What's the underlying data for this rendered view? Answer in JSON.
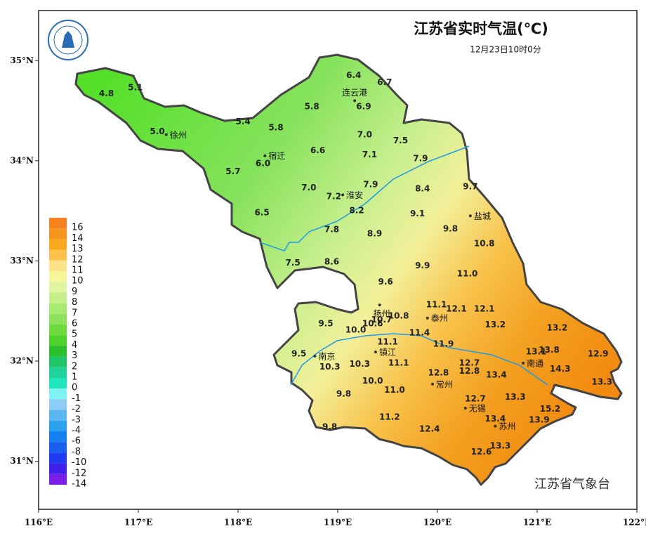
{
  "header": {
    "title": "江苏省实时气温(℃)",
    "subtitle": "12月23日10时0分"
  },
  "footer": "江苏省气象台",
  "map": {
    "xlim": [
      116,
      122
    ],
    "ylim": [
      30.52,
      35.5
    ],
    "xticks": [
      {
        "value": 116,
        "label": "116°E"
      },
      {
        "value": 117,
        "label": "117°E"
      },
      {
        "value": 118,
        "label": "118°E"
      },
      {
        "value": 119,
        "label": "119°E"
      },
      {
        "value": 120,
        "label": "120°E"
      },
      {
        "value": 121,
        "label": "121°E"
      },
      {
        "value": 122,
        "label": "122°E"
      }
    ],
    "yticks": [
      {
        "value": 31,
        "label": "31°N"
      },
      {
        "value": 32,
        "label": "32°N"
      },
      {
        "value": 33,
        "label": "33°N"
      },
      {
        "value": 34,
        "label": "34°N"
      },
      {
        "value": 35,
        "label": "35°N"
      }
    ],
    "stations": [
      {
        "lon": 116.68,
        "lat": 34.67,
        "value": 4.8
      },
      {
        "lon": 116.97,
        "lat": 34.73,
        "value": 5.1
      },
      {
        "lon": 117.19,
        "lat": 34.29,
        "value": 5,
        "label": "5.0"
      },
      {
        "lon": 118.05,
        "lat": 34.39,
        "value": 5.4
      },
      {
        "lon": 118.38,
        "lat": 34.33,
        "value": 5.8
      },
      {
        "lon": 118.74,
        "lat": 34.54,
        "value": 5.8
      },
      {
        "lon": 119.16,
        "lat": 34.85,
        "value": 6.4
      },
      {
        "lon": 119.47,
        "lat": 34.78,
        "value": 6.7
      },
      {
        "lon": 119.26,
        "lat": 34.54,
        "value": 6.9
      },
      {
        "lon": 119.27,
        "lat": 34.26,
        "value": 7,
        "label": "7.0"
      },
      {
        "lon": 118.8,
        "lat": 34.1,
        "value": 6.6
      },
      {
        "lon": 119.32,
        "lat": 34.06,
        "value": 7.1
      },
      {
        "lon": 119.63,
        "lat": 34.2,
        "value": 7.5
      },
      {
        "lon": 119.83,
        "lat": 34.02,
        "value": 7.9
      },
      {
        "lon": 118.25,
        "lat": 33.97,
        "value": 6,
        "label": "6.0"
      },
      {
        "lon": 117.95,
        "lat": 33.89,
        "value": 5.7
      },
      {
        "lon": 118.71,
        "lat": 33.73,
        "value": 7,
        "label": "7.0"
      },
      {
        "lon": 119.33,
        "lat": 33.76,
        "value": 7.9
      },
      {
        "lon": 118.96,
        "lat": 33.64,
        "value": 7.2
      },
      {
        "lon": 119.85,
        "lat": 33.72,
        "value": 8.4
      },
      {
        "lon": 120.33,
        "lat": 33.74,
        "value": 9.7
      },
      {
        "lon": 119.19,
        "lat": 33.5,
        "value": 8.2
      },
      {
        "lon": 118.24,
        "lat": 33.48,
        "value": 6.5
      },
      {
        "lon": 119.8,
        "lat": 33.47,
        "value": 9.1
      },
      {
        "lon": 120.13,
        "lat": 33.32,
        "value": 9.8
      },
      {
        "lon": 118.94,
        "lat": 33.31,
        "value": 7.8
      },
      {
        "lon": 119.37,
        "lat": 33.27,
        "value": 8.9
      },
      {
        "lon": 120.47,
        "lat": 33.17,
        "value": 10.8
      },
      {
        "lon": 118.55,
        "lat": 32.98,
        "value": 7.5
      },
      {
        "lon": 118.94,
        "lat": 32.99,
        "value": 8.6
      },
      {
        "lon": 119.85,
        "lat": 32.95,
        "value": 9.9
      },
      {
        "lon": 120.3,
        "lat": 32.87,
        "value": 11,
        "label": "11.0"
      },
      {
        "lon": 119.48,
        "lat": 32.79,
        "value": 9.6
      },
      {
        "lon": 119.99,
        "lat": 32.56,
        "value": 11.1
      },
      {
        "lon": 120.19,
        "lat": 32.52,
        "value": 12.1
      },
      {
        "lon": 120.47,
        "lat": 32.52,
        "value": 12.1
      },
      {
        "lon": 119.44,
        "lat": 32.41,
        "value": 10.7
      },
      {
        "lon": 119.61,
        "lat": 32.45,
        "value": 10.8
      },
      {
        "lon": 119.35,
        "lat": 32.37,
        "value": 10.6
      },
      {
        "lon": 118.88,
        "lat": 32.37,
        "value": 9.5
      },
      {
        "lon": 119.18,
        "lat": 32.31,
        "value": 10,
        "label": "10.0"
      },
      {
        "lon": 120.58,
        "lat": 32.36,
        "value": 13.2
      },
      {
        "lon": 121.2,
        "lat": 32.33,
        "value": 13.2
      },
      {
        "lon": 119.82,
        "lat": 32.28,
        "value": 11.4
      },
      {
        "lon": 119.5,
        "lat": 32.19,
        "value": 11.1
      },
      {
        "lon": 120.06,
        "lat": 32.17,
        "value": 11.9
      },
      {
        "lon": 118.61,
        "lat": 32.07,
        "value": 9.5
      },
      {
        "lon": 120.99,
        "lat": 32.09,
        "value": 13.1
      },
      {
        "lon": 121.12,
        "lat": 32.11,
        "value": 13.8
      },
      {
        "lon": 121.61,
        "lat": 32.07,
        "value": 12.9
      },
      {
        "lon": 118.92,
        "lat": 31.94,
        "value": 10.3
      },
      {
        "lon": 119.22,
        "lat": 31.97,
        "value": 10.3
      },
      {
        "lon": 119.61,
        "lat": 31.98,
        "value": 11.1
      },
      {
        "lon": 120.32,
        "lat": 31.98,
        "value": 12.7
      },
      {
        "lon": 120.32,
        "lat": 31.9,
        "value": 12.8
      },
      {
        "lon": 120.01,
        "lat": 31.88,
        "value": 12.8
      },
      {
        "lon": 121.23,
        "lat": 31.92,
        "value": 14.3
      },
      {
        "lon": 120.59,
        "lat": 31.86,
        "value": 13.4
      },
      {
        "lon": 119.35,
        "lat": 31.8,
        "value": 10,
        "label": "10.0"
      },
      {
        "lon": 121.65,
        "lat": 31.79,
        "value": 13.3
      },
      {
        "lon": 119.57,
        "lat": 31.71,
        "value": 11,
        "label": "11.0"
      },
      {
        "lon": 119.06,
        "lat": 31.67,
        "value": 9.8
      },
      {
        "lon": 120.38,
        "lat": 31.62,
        "value": 12.7
      },
      {
        "lon": 120.78,
        "lat": 31.64,
        "value": 13.3
      },
      {
        "lon": 121.13,
        "lat": 31.52,
        "value": 15.2
      },
      {
        "lon": 120.58,
        "lat": 31.42,
        "value": 13.4
      },
      {
        "lon": 121.02,
        "lat": 31.41,
        "value": 13.9
      },
      {
        "lon": 119.52,
        "lat": 31.44,
        "value": 11.2
      },
      {
        "lon": 119.92,
        "lat": 31.32,
        "value": 12.4
      },
      {
        "lon": 118.92,
        "lat": 31.34,
        "value": 9.8
      },
      {
        "lon": 120.63,
        "lat": 31.15,
        "value": 13.3
      },
      {
        "lon": 120.44,
        "lat": 31.09,
        "value": 12.6
      }
    ],
    "cities": [
      {
        "name": "连云港",
        "lon": 119.17,
        "lat": 34.6
      },
      {
        "name": "徐州",
        "lon": 117.28,
        "lat": 34.26
      },
      {
        "name": "宿迁",
        "lon": 118.27,
        "lat": 34.05
      },
      {
        "name": "淮安",
        "lon": 119.05,
        "lat": 33.66
      },
      {
        "name": "盐城",
        "lon": 120.33,
        "lat": 33.45
      },
      {
        "name": "扬州",
        "lon": 119.42,
        "lat": 32.56
      },
      {
        "name": "泰州",
        "lon": 119.9,
        "lat": 32.43
      },
      {
        "name": "南京",
        "lon": 118.77,
        "lat": 32.05
      },
      {
        "name": "镇江",
        "lon": 119.38,
        "lat": 32.09
      },
      {
        "name": "常州",
        "lon": 119.95,
        "lat": 31.77
      },
      {
        "name": "南通",
        "lon": 120.86,
        "lat": 31.98
      },
      {
        "name": "无锡",
        "lon": 120.28,
        "lat": 31.53
      },
      {
        "name": "苏州",
        "lon": 120.58,
        "lat": 31.35
      }
    ],
    "legend": {
      "levels": [
        16,
        14,
        13,
        12,
        11,
        10,
        9,
        8,
        7,
        6,
        5,
        4,
        3,
        2,
        1,
        0,
        -1,
        -2,
        -3,
        -4,
        -6,
        -8,
        -10,
        -12,
        -14
      ],
      "colors": [
        "#f5821f",
        "#f7941d",
        "#f9a91e",
        "#fbc14a",
        "#fce38a",
        "#f8f59a",
        "#e0f5a0",
        "#c6f08c",
        "#a8ea72",
        "#8ce25c",
        "#6edb3e",
        "#4fd12b",
        "#2bc02a",
        "#22c46a",
        "#1fd39a",
        "#20e6c0",
        "#7ff2f2",
        "#8ccdf5",
        "#58b6f0",
        "#2aa0ee",
        "#1580f0",
        "#1a5ff0",
        "#1f3cf0",
        "#4020e8",
        "#7a1ee8"
      ]
    }
  }
}
